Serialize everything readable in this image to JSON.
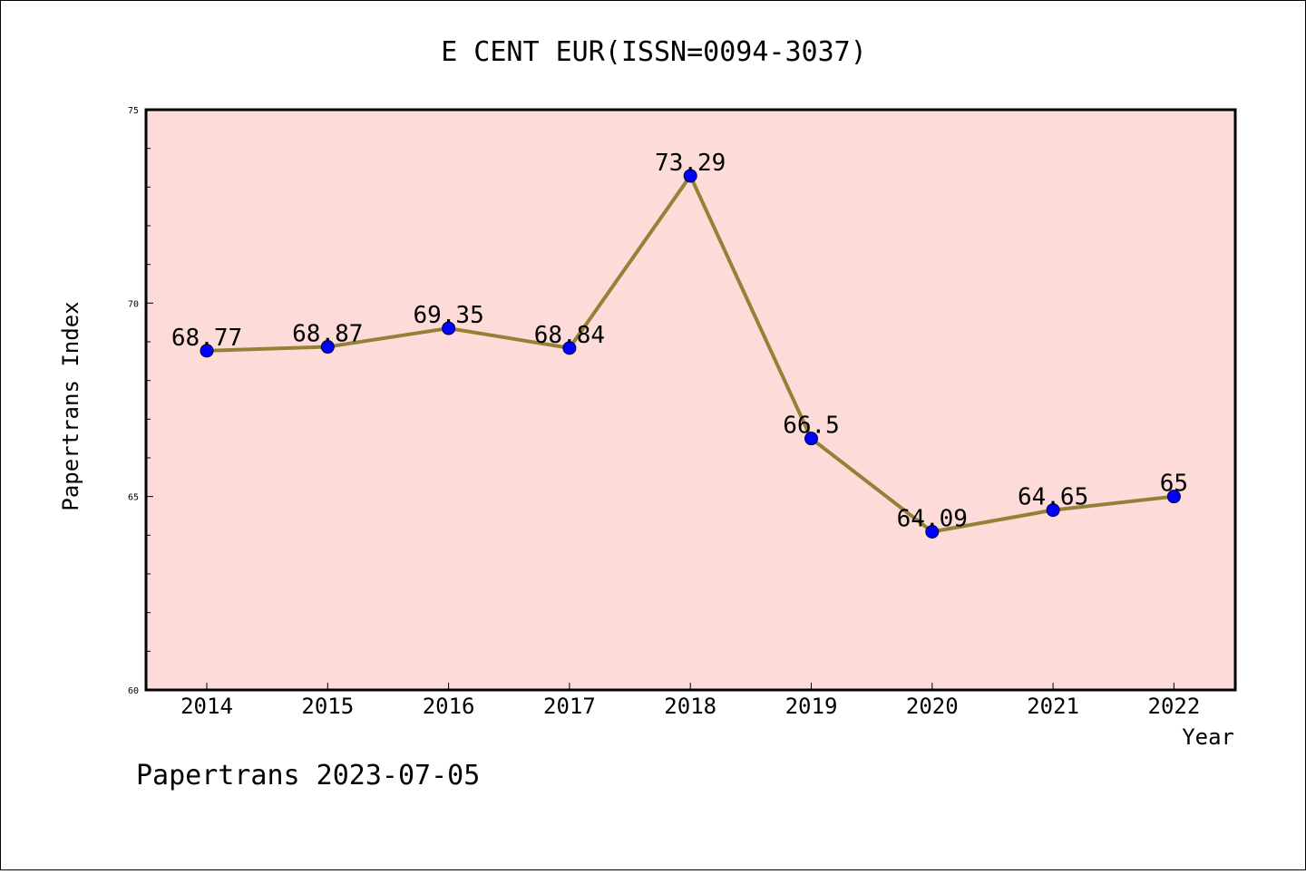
{
  "chart_data": {
    "type": "line",
    "title": "E CENT EUR(ISSN=0094-3037)",
    "xlabel": "Year",
    "ylabel": "Papertrans Index",
    "categories": [
      "2014",
      "2015",
      "2016",
      "2017",
      "2018",
      "2019",
      "2020",
      "2021",
      "2022"
    ],
    "series": [
      {
        "values": [
          68.77,
          68.87,
          69.35,
          68.84,
          73.29,
          66.5,
          64.09,
          64.65,
          65
        ],
        "labels": [
          "68.77",
          "68.87",
          "69.35",
          "68.84",
          "73.29",
          "66.5",
          "64.09",
          "64.65",
          "65"
        ]
      }
    ],
    "ylim": [
      60,
      75
    ],
    "yticks": [
      "60",
      "65",
      "70",
      "75"
    ],
    "grid": false,
    "colors": {
      "plot_background": "#fddbd8",
      "line": "#948138",
      "marker": "#0000ff"
    }
  },
  "footer": {
    "text": "Papertrans 2023-07-05"
  }
}
